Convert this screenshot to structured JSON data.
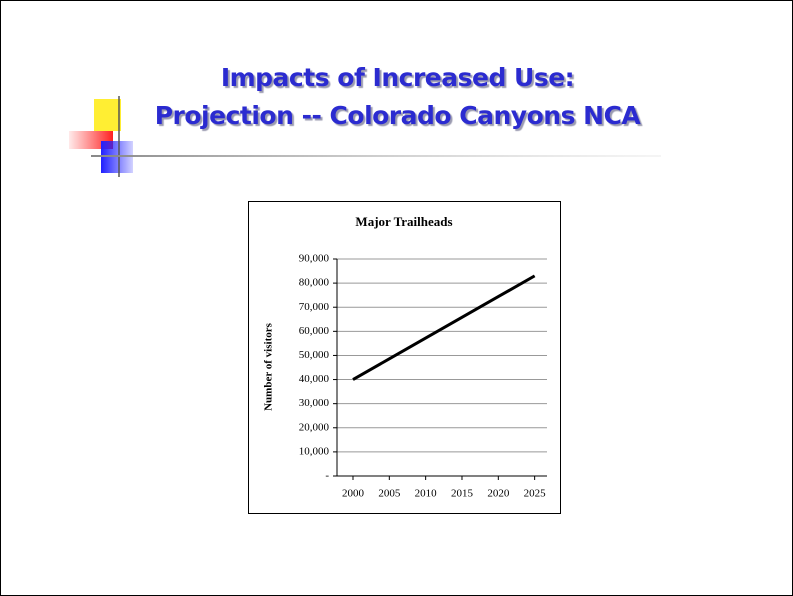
{
  "slide": {
    "title_lines": [
      "Impacts of Increased Use:",
      "Projection -- Colorado Canyons NCA"
    ]
  },
  "chart_data": {
    "type": "line",
    "title": "Major Trailheads",
    "y_label": "Number of visitors",
    "x": [
      2000,
      2005,
      2010,
      2015,
      2020,
      2025
    ],
    "series": [
      {
        "name": "Major Trailheads",
        "color": "#000000",
        "values": [
          40000,
          48600,
          57200,
          65800,
          74400,
          83000
        ]
      }
    ],
    "xlim": [
      1997.8,
      2026.7
    ],
    "xticks": [
      2000,
      2005,
      2010,
      2015,
      2020,
      2025
    ],
    "ylim": [
      0,
      90000
    ],
    "yticks": [
      {
        "value": 0,
        "label": "-"
      },
      {
        "value": 10000,
        "label": "10,000"
      },
      {
        "value": 20000,
        "label": "20,000"
      },
      {
        "value": 30000,
        "label": "30,000"
      },
      {
        "value": 40000,
        "label": "40,000"
      },
      {
        "value": 50000,
        "label": "50,000"
      },
      {
        "value": 60000,
        "label": "60,000"
      },
      {
        "value": 70000,
        "label": "70,000"
      },
      {
        "value": 80000,
        "label": "80,000"
      },
      {
        "value": 90000,
        "label": "90,000"
      }
    ],
    "grid": true,
    "legend": false
  }
}
